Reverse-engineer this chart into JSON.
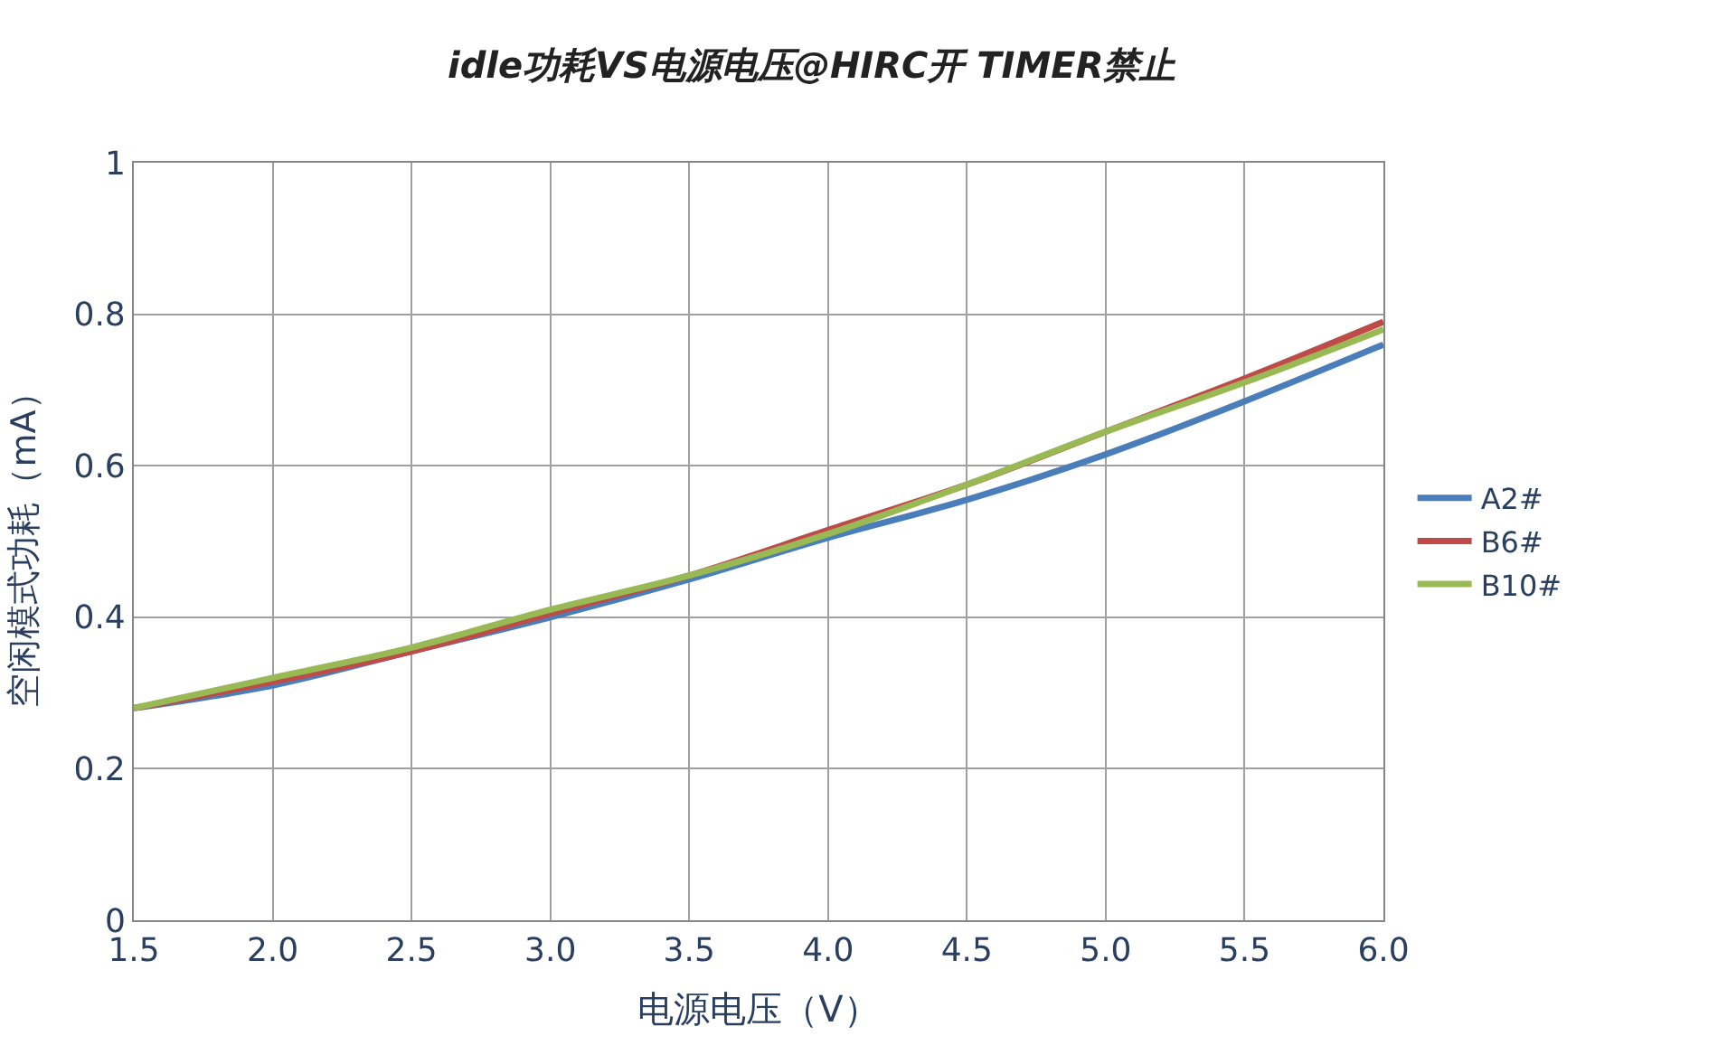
{
  "chart_data": {
    "type": "line",
    "title": "idle功耗VS电源电压@HIRC开 TIMER禁止",
    "xlabel": "电源电压（V）",
    "ylabel": "空闲模式功耗（mA）",
    "x": [
      1.5,
      2.0,
      2.5,
      3.0,
      3.5,
      4.0,
      4.5,
      5.0,
      5.5,
      6.0
    ],
    "series": [
      {
        "name": "A2#",
        "color": "#4a7ebb",
        "values": [
          0.28,
          0.31,
          0.355,
          0.4,
          0.45,
          0.505,
          0.555,
          0.615,
          0.685,
          0.76
        ]
      },
      {
        "name": "B6#",
        "color": "#be4b48",
        "values": [
          0.28,
          0.315,
          0.355,
          0.405,
          0.455,
          0.515,
          0.575,
          0.645,
          0.715,
          0.79
        ]
      },
      {
        "name": "B10#",
        "color": "#98b954",
        "values": [
          0.28,
          0.32,
          0.36,
          0.41,
          0.455,
          0.51,
          0.575,
          0.645,
          0.71,
          0.78
        ]
      }
    ],
    "xlim": [
      1.5,
      6.0
    ],
    "xticks": [
      1.5,
      {
        "value": 2,
        "label": "2.0"
      },
      2.5,
      {
        "value": 3,
        "label": "3.0"
      },
      3.5,
      {
        "value": 4,
        "label": "4.0"
      },
      4.5,
      {
        "value": 5,
        "label": "5.0"
      },
      5.5,
      {
        "value": 6,
        "label": "6.0"
      }
    ],
    "ylim": [
      0,
      1
    ],
    "yticks": [
      0,
      0.2,
      0.4,
      0.6,
      0.8,
      1
    ],
    "grid": true,
    "legend": "right",
    "marker": "none",
    "line_style": "solid"
  }
}
